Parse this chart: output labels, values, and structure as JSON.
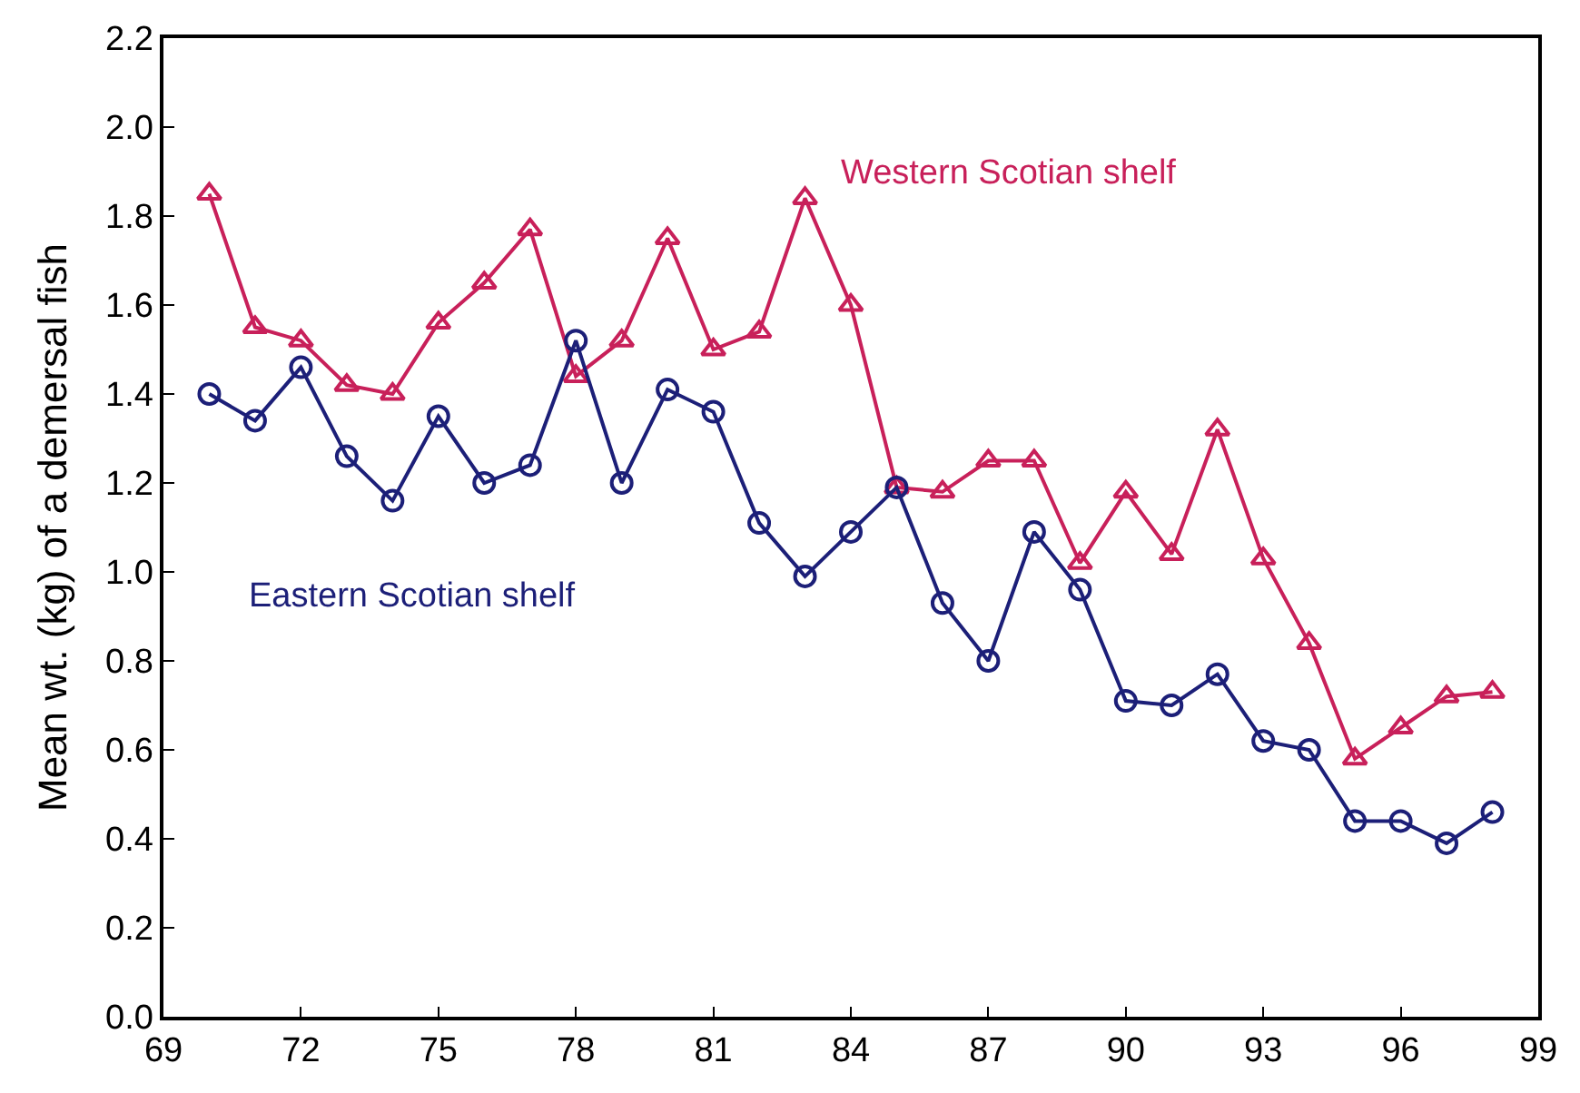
{
  "chart_data": {
    "type": "line",
    "ylabel": "Mean wt. (kg) of a demersal fish",
    "x": [
      70,
      71,
      72,
      73,
      74,
      75,
      76,
      77,
      78,
      79,
      80,
      81,
      82,
      83,
      84,
      85,
      86,
      87,
      88,
      89,
      90,
      91,
      92,
      93,
      94,
      95,
      96,
      97,
      98
    ],
    "series": [
      {
        "name": "Western Scotian shelf",
        "color": "#c8205a",
        "marker": "triangle",
        "values": [
          1.85,
          1.55,
          1.52,
          1.42,
          1.4,
          1.56,
          1.65,
          1.77,
          1.44,
          1.52,
          1.75,
          1.5,
          1.54,
          1.84,
          1.6,
          1.19,
          1.18,
          1.25,
          1.25,
          1.02,
          1.18,
          1.04,
          1.32,
          1.03,
          0.84,
          0.58,
          0.65,
          0.72,
          0.73
        ]
      },
      {
        "name": "Eastern Scotian shelf",
        "color": "#1c1f78",
        "marker": "circle",
        "values": [
          1.4,
          1.34,
          1.46,
          1.26,
          1.16,
          1.35,
          1.2,
          1.24,
          1.52,
          1.2,
          1.41,
          1.36,
          1.11,
          0.99,
          1.09,
          1.19,
          0.93,
          0.8,
          1.09,
          0.96,
          0.71,
          0.7,
          0.77,
          0.62,
          0.6,
          0.44,
          0.44,
          0.39,
          0.46
        ]
      }
    ],
    "xlim": [
      69,
      99
    ],
    "xticks": [
      69,
      72,
      75,
      78,
      81,
      84,
      87,
      90,
      93,
      96,
      99
    ],
    "ylim": [
      0,
      2.2
    ],
    "yticks": [
      {
        "value": 0,
        "label": "0.0"
      },
      {
        "value": 0.2,
        "label": "0.2"
      },
      {
        "value": 0.4,
        "label": "0.4"
      },
      {
        "value": 0.6,
        "label": "0.6"
      },
      {
        "value": 0.8,
        "label": "0.8"
      },
      {
        "value": 1.0,
        "label": "1.0"
      },
      {
        "value": 1.2,
        "label": "1.2"
      },
      {
        "value": 1.4,
        "label": "1.4"
      },
      {
        "value": 1.6,
        "label": "1.6"
      },
      {
        "value": 1.8,
        "label": "1.8"
      },
      {
        "value": 2.0,
        "label": "2.0"
      },
      {
        "value": 2.2,
        "label": "2.2"
      }
    ],
    "legend": false,
    "line_style": "solid"
  }
}
